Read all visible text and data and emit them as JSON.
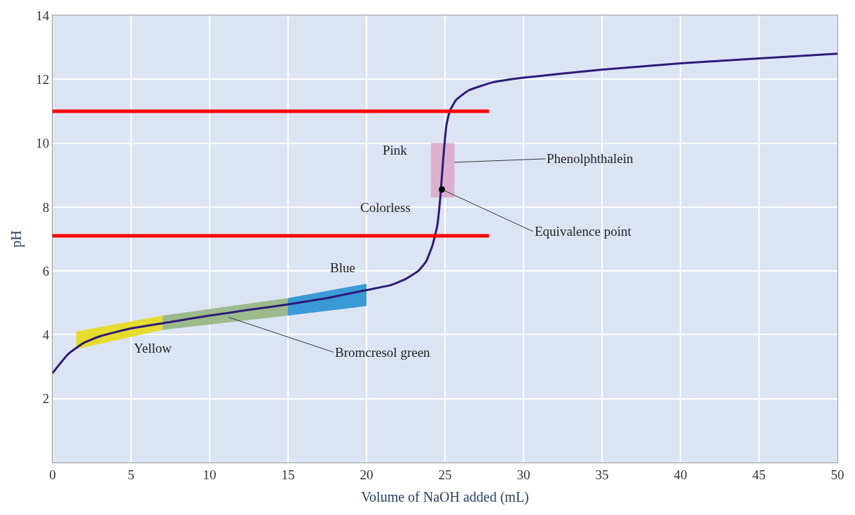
{
  "chart_data": {
    "type": "line",
    "xlabel": "Volume of NaOH added (mL)",
    "ylabel": "pH",
    "xlim": [
      0,
      50
    ],
    "xticks": [
      0,
      5,
      10,
      15,
      20,
      25,
      30,
      35,
      40,
      45,
      50
    ],
    "ylim": [
      0,
      14
    ],
    "yticks": [
      2,
      4,
      6,
      8,
      10,
      12,
      14
    ],
    "grid": true,
    "series": [
      {
        "color": "#e6dc2e",
        "x": [
          1.5,
          7
        ],
        "values": [
          null,
          null
        ],
        "lower": [
          3.55,
          4.15
        ],
        "upper": [
          4.1,
          4.6
        ]
      },
      {
        "color": "#9dba8c",
        "x": [
          7,
          15
        ],
        "values": [
          null,
          null
        ],
        "lower": [
          4.15,
          4.6
        ],
        "upper": [
          4.6,
          5.15
        ]
      },
      {
        "color": "#3a9ad6",
        "x": [
          15,
          20
        ],
        "values": [
          null,
          null
        ],
        "lower": [
          4.6,
          4.9
        ],
        "upper": [
          5.15,
          5.6
        ]
      },
      {
        "color": "#dcb0cc",
        "x": [
          24.1,
          25.6
        ],
        "values": [
          null,
          null
        ],
        "lower": [
          8.3,
          8.3
        ],
        "upper": [
          10,
          10
        ]
      },
      {
        "color": "#2e1a78",
        "x": [
          0,
          1,
          2,
          3,
          5,
          7.5,
          10,
          12.5,
          15,
          17.5,
          20,
          21.5,
          22.5,
          23.3,
          23.8,
          24.2,
          24.5,
          24.7,
          24.9,
          25.1,
          25.3,
          25.7,
          26.5,
          28,
          30,
          35,
          40,
          45,
          50
        ],
        "values": [
          2.8,
          3.4,
          3.75,
          3.95,
          4.2,
          4.4,
          4.6,
          4.78,
          4.95,
          5.15,
          5.4,
          5.55,
          5.75,
          6.0,
          6.3,
          6.8,
          7.4,
          8.3,
          9.6,
          10.6,
          11.0,
          11.35,
          11.65,
          11.9,
          12.05,
          12.3,
          12.5,
          12.65,
          12.8
        ]
      },
      {
        "color": "#ff0000",
        "x": [
          0,
          27.8
        ],
        "values": [
          11.0,
          11.0
        ]
      },
      {
        "color": "#ff0000",
        "x": [
          0,
          27.8
        ],
        "values": [
          7.1,
          7.1
        ]
      },
      {
        "type": "scatter",
        "color": "#000000",
        "x": [
          24.8
        ],
        "values": [
          8.55
        ]
      }
    ],
    "annotations": [
      "Pink",
      "Colorless",
      "Blue",
      "Yellow",
      {
        "text": "Phenolphthalein",
        "x": 25.6,
        "y": 9.4
      },
      {
        "text": "Equivalence point",
        "x": 24.8,
        "y": 8.55
      },
      {
        "text": "Bromcresol green",
        "x": 11.2,
        "y": 4.55
      }
    ]
  }
}
